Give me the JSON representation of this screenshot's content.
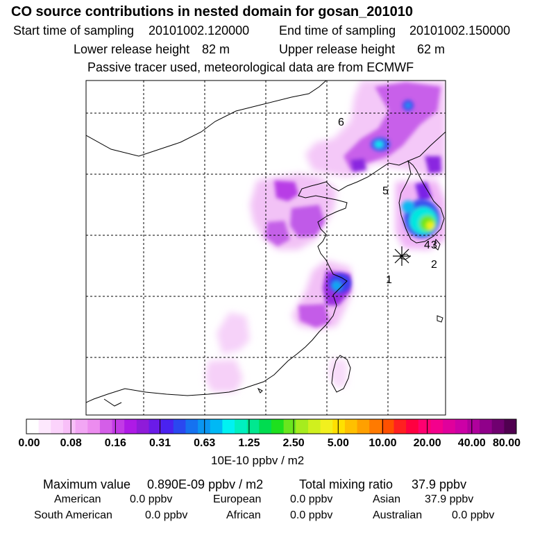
{
  "title": "CO  source contributions in nested domain for gosan_201010",
  "header": {
    "start_label": "Start time of sampling",
    "start_value": "20101002.120000",
    "end_label": "End time of sampling",
    "end_value": "20101002.150000",
    "lower_label": "Lower release height",
    "lower_value": "82 m",
    "upper_label": "Upper release height",
    "upper_value": "62 m",
    "note": "Passive tracer used, meteorological data are from ECMWF"
  },
  "map": {
    "point_labels": [
      "1",
      "2",
      "3",
      "4",
      "5",
      "6"
    ]
  },
  "colorbar": {
    "colors": [
      "#ffffff",
      "#fde8fd",
      "#fbd3fb",
      "#f8bff8",
      "#f2a6f4",
      "#ec8cef",
      "#d45ee8",
      "#c23ae6",
      "#ae1ae6",
      "#8f1bd9",
      "#6a1be8",
      "#4a22f0",
      "#2a48f0",
      "#1572f0",
      "#0a96f2",
      "#00b8f5",
      "#00f2f2",
      "#00f0c0",
      "#00e890",
      "#00dc50",
      "#1ee01e",
      "#6ae61e",
      "#a6ec1e",
      "#d0f01e",
      "#f2f01e",
      "#ffe000",
      "#ffc000",
      "#ffa000",
      "#ff7a00",
      "#ff5000",
      "#ff2020",
      "#ff0040",
      "#ff0070",
      "#f4008c",
      "#e0009c",
      "#cc00a6",
      "#b0009c",
      "#90008a",
      "#700070",
      "#500050"
    ],
    "labels": [
      "0.00",
      "0.08",
      "0.16",
      "0.31",
      "0.63",
      "1.25",
      "2.50",
      "5.00",
      "10.00",
      "20.00",
      "40.00",
      "80.00"
    ],
    "unit": "10E-10 ppbv / m2"
  },
  "footer": {
    "max_label": "Maximum value",
    "max_value": "0.890E-09 ppbv / m2",
    "total_label": "Total mixing ratio",
    "total_value": "37.9 ppbv",
    "american_label": "American",
    "american_value": "0.0 ppbv",
    "european_label": "European",
    "european_value": "0.0 ppbv",
    "asian_label": "Asian",
    "asian_value": "37.9 ppbv",
    "south_american_label": "South American",
    "south_american_value": "0.0 ppbv",
    "african_label": "African",
    "african_value": "0.0 ppbv",
    "australian_label": "Australian",
    "australian_value": "0.0 ppbv"
  }
}
